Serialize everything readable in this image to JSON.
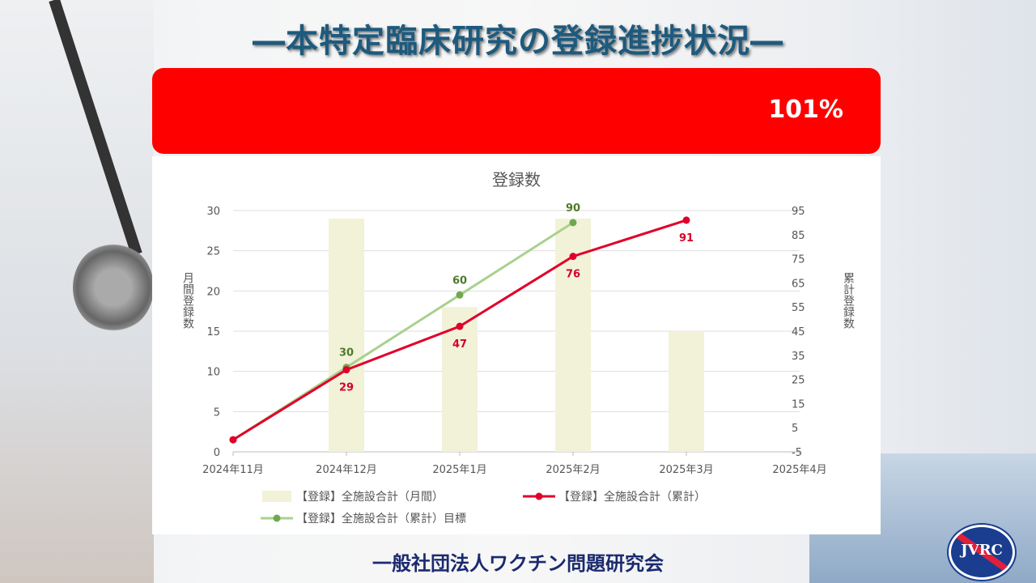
{
  "header": {
    "title": "―本特定臨床研究の登録進捗状況―"
  },
  "progress": {
    "label": "101%",
    "value_percent": 101,
    "color": "#ff0000"
  },
  "chart_data": {
    "type": "bar+line",
    "title": "登録数",
    "categories": [
      "2024年11月",
      "2024年12月",
      "2025年1月",
      "2025年2月",
      "2025年3月",
      "2025年4月"
    ],
    "ylabel_left": "月間登録数",
    "ylabel_right": "累計登録数",
    "ylim_left": [
      0,
      30
    ],
    "yticks_left": [
      0,
      5,
      10,
      15,
      20,
      25,
      30
    ],
    "ylim_right": [
      -5,
      95
    ],
    "yticks_right": [
      -5,
      5,
      15,
      25,
      35,
      45,
      55,
      65,
      75,
      85,
      95
    ],
    "grid": true,
    "legend_position": "bottom",
    "series": [
      {
        "name": "【登録】全施設合計（月間）",
        "type": "bar",
        "axis": "left",
        "color": "#f2f2d9",
        "values": [
          null,
          29,
          18,
          29,
          15,
          null
        ]
      },
      {
        "name": "【登録】全施設合計（累計）",
        "type": "line",
        "axis": "right",
        "color": "#e0002a",
        "values": [
          0,
          29,
          47,
          76,
          91,
          null
        ],
        "labels": [
          null,
          "29",
          "47",
          "76",
          "91",
          null
        ]
      },
      {
        "name": "【登録】全施設合計（累計）目標",
        "type": "line",
        "axis": "right",
        "color": "#a9d18e",
        "values": [
          0,
          30,
          60,
          90,
          null,
          null
        ],
        "labels": [
          null,
          "30",
          "60",
          "90",
          null,
          null
        ]
      }
    ]
  },
  "footer": {
    "org": "一般社団法人ワクチン問題研究会"
  },
  "logo": {
    "text": "JVRC"
  }
}
